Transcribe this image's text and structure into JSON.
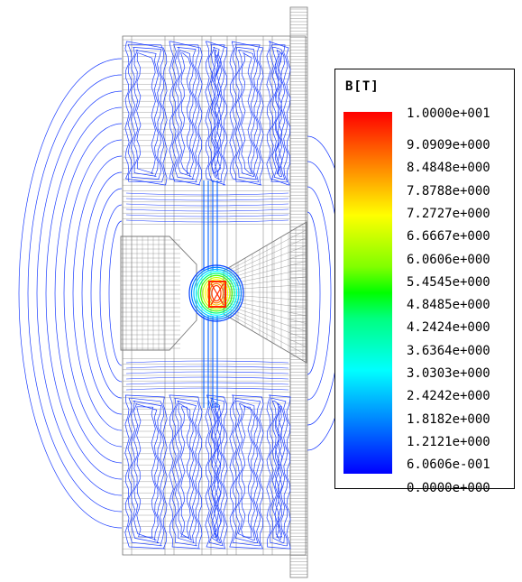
{
  "legend": {
    "title": "B[T]",
    "labels": [
      "1.0000e+001",
      "9.0909e+000",
      "8.4848e+000",
      "7.8788e+000",
      "7.2727e+000",
      "6.6667e+000",
      "6.0606e+000",
      "5.4545e+000",
      "4.8485e+000",
      "4.2424e+000",
      "3.6364e+000",
      "3.0303e+000",
      "2.4242e+000",
      "1.8182e+000",
      "1.2121e+000",
      "6.0606e-001",
      "0.0000e+000"
    ],
    "colors": [
      "#ff0000",
      "#ff4000",
      "#ff8000",
      "#ffbf00",
      "#ffff00",
      "#bfff00",
      "#80ff00",
      "#00ff00",
      "#00ff80",
      "#00ffbf",
      "#00ffff",
      "#00bfff",
      "#0080ff",
      "#0040ff",
      "#0000ff"
    ]
  },
  "plot": {
    "line_color": "#1a3cff",
    "mesh_color": "#7a7a7a",
    "hotspot_color": "#ff2a00"
  }
}
